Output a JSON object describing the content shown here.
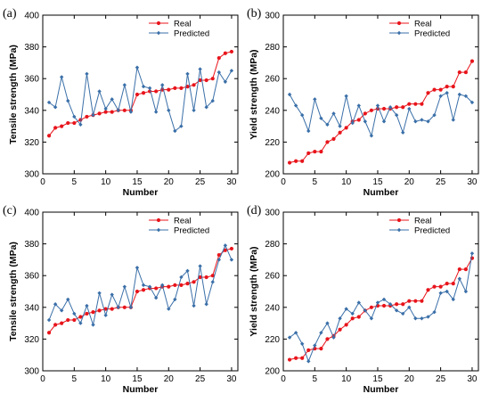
{
  "chart_data": [
    {
      "type": "line",
      "panel_label": "(a)",
      "xlabel": "Number",
      "ylabel": "Tensile strength (MPa)",
      "xlim": [
        0,
        31
      ],
      "ylim": [
        300,
        400
      ],
      "xticks": [
        0,
        5,
        10,
        15,
        20,
        25,
        30
      ],
      "yticks": [
        300,
        320,
        340,
        360,
        380,
        400
      ],
      "legend_position": "top-right",
      "grid": false,
      "x": [
        1,
        2,
        3,
        4,
        5,
        6,
        7,
        8,
        9,
        10,
        11,
        12,
        13,
        14,
        15,
        16,
        17,
        18,
        19,
        20,
        21,
        22,
        23,
        24,
        25,
        26,
        27,
        28,
        29,
        30
      ],
      "series": [
        {
          "name": "Real",
          "color": "#e8141b",
          "marker": "circle",
          "values": [
            324,
            329,
            330,
            332,
            332,
            334,
            336,
            337,
            338,
            339,
            339,
            340,
            340,
            340,
            350,
            351,
            352,
            352,
            353,
            353,
            354,
            354,
            355,
            356,
            359,
            359,
            360,
            373,
            376,
            377
          ]
        },
        {
          "name": "Predicted",
          "color": "#3a6fa8",
          "marker": "diamond",
          "values": [
            345,
            342,
            361,
            346,
            336,
            331,
            363,
            337,
            352,
            341,
            347,
            340,
            356,
            339,
            367,
            355,
            354,
            339,
            356,
            340,
            327,
            330,
            363,
            340,
            366,
            342,
            346,
            364,
            358,
            365
          ]
        }
      ]
    },
    {
      "type": "line",
      "panel_label": "(b)",
      "xlabel": "Number",
      "ylabel": "Yield strength (MPa)",
      "xlim": [
        0,
        31
      ],
      "ylim": [
        200,
        300
      ],
      "xticks": [
        0,
        5,
        10,
        15,
        20,
        25,
        30
      ],
      "yticks": [
        200,
        220,
        240,
        260,
        280,
        300
      ],
      "legend_position": "top-right",
      "grid": false,
      "x": [
        1,
        2,
        3,
        4,
        5,
        6,
        7,
        8,
        9,
        10,
        11,
        12,
        13,
        14,
        15,
        16,
        17,
        18,
        19,
        20,
        21,
        22,
        23,
        24,
        25,
        26,
        27,
        28,
        29,
        30
      ],
      "series": [
        {
          "name": "Real",
          "color": "#e8141b",
          "marker": "circle",
          "values": [
            207,
            208,
            208,
            213,
            214,
            214,
            220,
            222,
            226,
            229,
            233,
            234,
            238,
            240,
            241,
            241,
            241,
            242,
            242,
            244,
            244,
            244,
            251,
            253,
            253,
            255,
            255,
            264,
            264,
            271
          ]
        },
        {
          "name": "Predicted",
          "color": "#3a6fa8",
          "marker": "diamond",
          "values": [
            250,
            243,
            237,
            227,
            247,
            235,
            231,
            238,
            230,
            249,
            232,
            243,
            233,
            224,
            243,
            233,
            242,
            237,
            226,
            241,
            233,
            234,
            233,
            237,
            249,
            251,
            234,
            250,
            249,
            245
          ]
        }
      ]
    },
    {
      "type": "line",
      "panel_label": "(c)",
      "xlabel": "Number",
      "ylabel": "Tensile strength (MPa)",
      "xlim": [
        0,
        31
      ],
      "ylim": [
        300,
        400
      ],
      "xticks": [
        0,
        5,
        10,
        15,
        20,
        25,
        30
      ],
      "yticks": [
        300,
        320,
        340,
        360,
        380,
        400
      ],
      "legend_position": "top-right",
      "grid": false,
      "x": [
        1,
        2,
        3,
        4,
        5,
        6,
        7,
        8,
        9,
        10,
        11,
        12,
        13,
        14,
        15,
        16,
        17,
        18,
        19,
        20,
        21,
        22,
        23,
        24,
        25,
        26,
        27,
        28,
        29,
        30
      ],
      "series": [
        {
          "name": "Real",
          "color": "#e8141b",
          "marker": "circle",
          "values": [
            324,
            329,
            330,
            332,
            332,
            334,
            336,
            337,
            338,
            339,
            339,
            340,
            340,
            340,
            350,
            351,
            352,
            352,
            353,
            353,
            354,
            354,
            355,
            356,
            359,
            359,
            360,
            373,
            376,
            377
          ]
        },
        {
          "name": "Predicted",
          "color": "#3a6fa8",
          "marker": "diamond",
          "values": [
            332,
            342,
            338,
            345,
            336,
            330,
            341,
            329,
            349,
            335,
            348,
            340,
            353,
            340,
            365,
            354,
            353,
            346,
            354,
            339,
            345,
            359,
            363,
            341,
            366,
            342,
            356,
            370,
            379,
            370
          ]
        }
      ]
    },
    {
      "type": "line",
      "panel_label": "(d)",
      "xlabel": "Number",
      "ylabel": "Yield strength (MPa)",
      "xlim": [
        0,
        31
      ],
      "ylim": [
        200,
        300
      ],
      "xticks": [
        0,
        5,
        10,
        15,
        20,
        25,
        30
      ],
      "yticks": [
        200,
        220,
        240,
        260,
        280,
        300
      ],
      "legend_position": "top-right",
      "grid": false,
      "x": [
        1,
        2,
        3,
        4,
        5,
        6,
        7,
        8,
        9,
        10,
        11,
        12,
        13,
        14,
        15,
        16,
        17,
        18,
        19,
        20,
        21,
        22,
        23,
        24,
        25,
        26,
        27,
        28,
        29,
        30
      ],
      "series": [
        {
          "name": "Real",
          "color": "#e8141b",
          "marker": "circle",
          "values": [
            207,
            208,
            208,
            213,
            214,
            214,
            220,
            222,
            226,
            229,
            233,
            234,
            238,
            240,
            241,
            241,
            241,
            242,
            242,
            244,
            244,
            244,
            251,
            253,
            253,
            255,
            255,
            264,
            264,
            271
          ]
        },
        {
          "name": "Predicted",
          "color": "#3a6fa8",
          "marker": "diamond",
          "values": [
            221,
            224,
            217,
            206,
            216,
            224,
            230,
            221,
            233,
            239,
            236,
            243,
            238,
            233,
            243,
            245,
            242,
            238,
            236,
            240,
            233,
            233,
            234,
            237,
            249,
            250,
            245,
            258,
            250,
            274
          ]
        }
      ]
    }
  ]
}
